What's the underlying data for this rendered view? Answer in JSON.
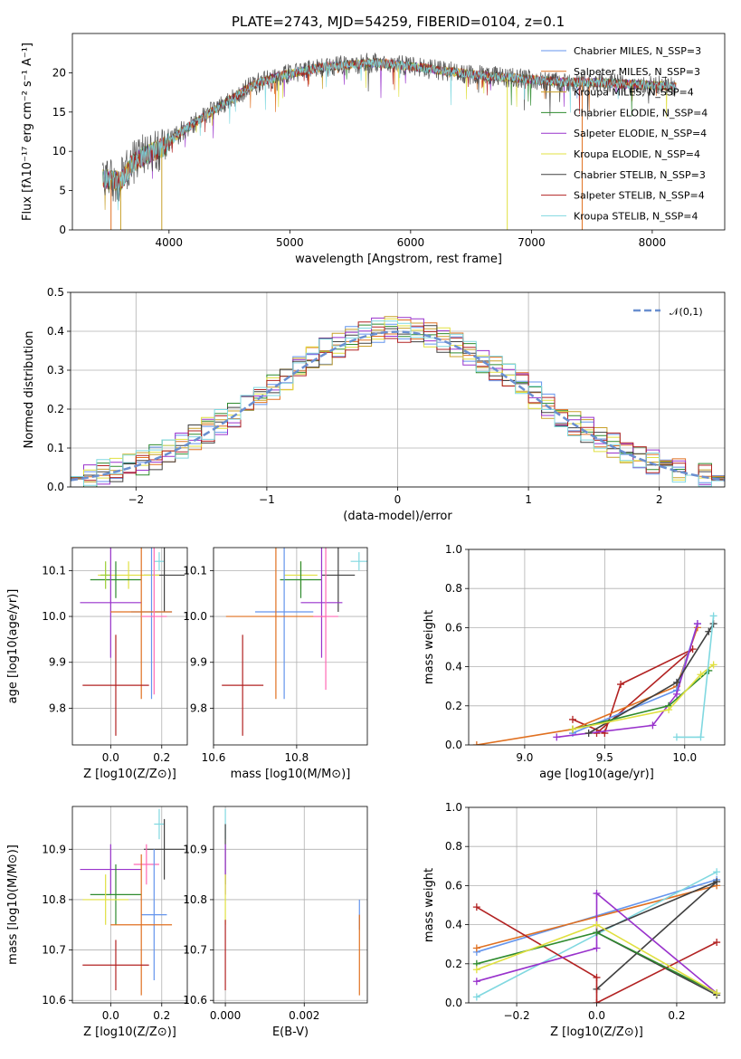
{
  "figure": {
    "title": "PLATE=2743, MJD=54259, FIBERID=0104, z=0.1"
  },
  "chart_data": [
    {
      "id": "spectrum",
      "type": "line",
      "title": "PLATE=2743, MJD=54259, FIBERID=0104, z=0.1",
      "xlabel": "wavelength [Angstrom, rest frame]",
      "ylabel": "Flux [fλ10⁻¹⁷ erg cm⁻² s⁻¹ A⁻¹]",
      "xlim": [
        3200,
        8600
      ],
      "ylim": [
        0,
        25
      ],
      "xticks": [
        4000,
        5000,
        6000,
        7000,
        8000
      ],
      "yticks": [
        0,
        5,
        10,
        15,
        20
      ],
      "grid": false,
      "legend_position": "top-right",
      "continuum": {
        "x": [
          3450,
          3600,
          3700,
          3800,
          3950,
          4100,
          4300,
          4500,
          4700,
          4900,
          5100,
          5300,
          5500,
          5700,
          5900,
          6100,
          6300,
          6500,
          6700,
          6900,
          7100,
          7300,
          7500,
          7700,
          7900,
          8100,
          8200
        ],
        "y": [
          6.5,
          6.2,
          8.5,
          9.5,
          10.5,
          12.5,
          14.5,
          16.5,
          18.5,
          19.5,
          20.2,
          20.8,
          21.0,
          21.3,
          21.0,
          20.6,
          20.2,
          19.8,
          19.5,
          19.3,
          19.0,
          18.8,
          18.8,
          18.6,
          18.5,
          18.3,
          18.2
        ]
      },
      "series": [
        {
          "name": "Chabrier MILES, N_SSP=3",
          "color": "#6495ed"
        },
        {
          "name": "Salpeter MILES, N_SSP=3",
          "color": "#e07020"
        },
        {
          "name": "Kroupa MILES, N_SSP=4",
          "color": "#c8a02a"
        },
        {
          "name": "Chabrier ELODIE, N_SSP=4",
          "color": "#2e8b2e"
        },
        {
          "name": "Salpeter ELODIE, N_SSP=4",
          "color": "#9932cc"
        },
        {
          "name": "Kroupa ELODIE, N_SSP=4",
          "color": "#e0e040"
        },
        {
          "name": "Chabrier STELIB, N_SSP=3",
          "color": "#404040"
        },
        {
          "name": "Salpeter STELIB, N_SSP=4",
          "color": "#b22222"
        },
        {
          "name": "Kroupa STELIB, N_SSP=4",
          "color": "#80d8e0"
        }
      ]
    },
    {
      "id": "residuals",
      "type": "histogram",
      "xlabel": "(data-model)/error",
      "ylabel": "Normed distribution",
      "xlim": [
        -2.5,
        2.5
      ],
      "ylim": [
        0,
        0.5
      ],
      "xticks": [
        -2,
        -1,
        0,
        1,
        2
      ],
      "yticks": [
        0.0,
        0.1,
        0.2,
        0.3,
        0.4,
        0.5
      ],
      "grid": true,
      "legend_position": "top-right",
      "bin_width": 0.1,
      "reference": {
        "name": "𝒩(0,1)",
        "color": "#6a8fd0",
        "style": "dashed"
      },
      "series_colors": [
        "#6495ed",
        "#e07020",
        "#c8a02a",
        "#2e8b2e",
        "#9932cc",
        "#e0e040",
        "#404040",
        "#b22222",
        "#80d8e0"
      ]
    },
    {
      "id": "z-age",
      "type": "scatter",
      "xlabel": "Z [log10(Z/Z⊙)]",
      "ylabel": "age  [log10(age/yr)]",
      "xlim": [
        -0.15,
        0.3
      ],
      "ylim": [
        9.72,
        10.15
      ],
      "xticks": [
        0.0,
        0.2
      ],
      "yticks": [
        9.8,
        9.9,
        10.0,
        10.1
      ],
      "grid": true,
      "points": [
        {
          "x": 0.19,
          "y": 10.12,
          "xerr": 0.02,
          "yerr": 0.02,
          "color": "#80d8e0"
        },
        {
          "x": 0.21,
          "y": 10.09,
          "xerr": 0.08,
          "yerr": 0.08,
          "color": "#404040"
        },
        {
          "x": 0.07,
          "y": 10.09,
          "xerr": 0.12,
          "yerr": 0.03,
          "color": "#e0e040"
        },
        {
          "x": 0.02,
          "y": 10.08,
          "xerr": 0.1,
          "yerr": 0.04,
          "color": "#2e8b2e"
        },
        {
          "x": -0.02,
          "y": 10.09,
          "xerr": 0.02,
          "yerr": 0.03,
          "color": "#9acd32"
        },
        {
          "x": 0.0,
          "y": 10.03,
          "xerr": 0.12,
          "yerr": 0.12,
          "color": "#9932cc"
        },
        {
          "x": 0.16,
          "y": 10.01,
          "xerr": 0.08,
          "yerr": 0.19,
          "color": "#6495ed"
        },
        {
          "x": 0.12,
          "y": 10.01,
          "xerr": 0.12,
          "yerr": 0.19,
          "color": "#e07020"
        },
        {
          "x": 0.17,
          "y": 10.0,
          "xerr": 0.05,
          "yerr": 0.17,
          "color": "#ff69b4"
        },
        {
          "x": 0.02,
          "y": 9.85,
          "xerr": 0.13,
          "yerr": 0.11,
          "color": "#b22222"
        }
      ]
    },
    {
      "id": "mass-age",
      "type": "scatter",
      "xlabel": "mass [log10(M/M⊙)]",
      "ylabel": "",
      "xlim": [
        10.6,
        10.97
      ],
      "ylim": [
        9.72,
        10.15
      ],
      "xticks": [
        10.6,
        10.8
      ],
      "yticks": [
        9.8,
        9.9,
        10.0,
        10.1
      ],
      "grid": true,
      "points": [
        {
          "x": 10.95,
          "y": 10.12,
          "xerr": 0.02,
          "yerr": 0.02,
          "color": "#80d8e0"
        },
        {
          "x": 10.9,
          "y": 10.09,
          "xerr": 0.04,
          "yerr": 0.08,
          "color": "#404040"
        },
        {
          "x": 10.81,
          "y": 10.09,
          "xerr": 0.04,
          "yerr": 0.03,
          "color": "#e0e040"
        },
        {
          "x": 10.81,
          "y": 10.08,
          "xerr": 0.05,
          "yerr": 0.04,
          "color": "#2e8b2e"
        },
        {
          "x": 10.86,
          "y": 10.03,
          "xerr": 0.05,
          "yerr": 0.12,
          "color": "#9932cc"
        },
        {
          "x": 10.77,
          "y": 10.01,
          "xerr": 0.07,
          "yerr": 0.19,
          "color": "#6495ed"
        },
        {
          "x": 10.75,
          "y": 10.0,
          "xerr": 0.12,
          "yerr": 0.18,
          "color": "#e07020"
        },
        {
          "x": 10.87,
          "y": 10.0,
          "xerr": 0.03,
          "yerr": 0.16,
          "color": "#ff69b4"
        },
        {
          "x": 10.67,
          "y": 9.85,
          "xerr": 0.05,
          "yerr": 0.11,
          "color": "#b22222"
        }
      ]
    },
    {
      "id": "age-weight",
      "type": "line",
      "xlabel": "age  [log10(age/yr)]",
      "ylabel": "mass weight",
      "xlim": [
        8.65,
        10.25
      ],
      "ylim": [
        0,
        1
      ],
      "xticks": [
        9.0,
        9.5,
        10.0
      ],
      "yticks": [
        0.0,
        0.2,
        0.4,
        0.6,
        0.8,
        1.0
      ],
      "grid": true,
      "series": [
        {
          "color": "#b22222",
          "x": [
            9.3,
            9.5,
            9.6,
            10.05,
            9.45
          ],
          "y": [
            0.13,
            0.06,
            0.31,
            0.49,
            0.06
          ]
        },
        {
          "color": "#e07020",
          "x": [
            8.7,
            9.3,
            9.95,
            10.08
          ],
          "y": [
            0.0,
            0.08,
            0.3,
            0.6
          ]
        },
        {
          "color": "#6495ed",
          "x": [
            9.3,
            9.95,
            10.08
          ],
          "y": [
            0.06,
            0.28,
            0.62
          ]
        },
        {
          "color": "#9932cc",
          "x": [
            9.2,
            9.8,
            9.95,
            10.08
          ],
          "y": [
            0.04,
            0.1,
            0.26,
            0.62
          ]
        },
        {
          "color": "#404040",
          "x": [
            9.4,
            9.95,
            10.15,
            10.18
          ],
          "y": [
            0.06,
            0.32,
            0.58,
            0.62
          ]
        },
        {
          "color": "#2e8b2e",
          "x": [
            9.3,
            9.9,
            10.15
          ],
          "y": [
            0.08,
            0.2,
            0.38
          ]
        },
        {
          "color": "#e0e040",
          "x": [
            9.3,
            9.9,
            10.1,
            10.18
          ],
          "y": [
            0.08,
            0.18,
            0.36,
            0.41
          ]
        },
        {
          "color": "#80d8e0",
          "x": [
            9.95,
            10.1,
            10.18
          ],
          "y": [
            0.04,
            0.04,
            0.66
          ]
        }
      ]
    },
    {
      "id": "z-mass",
      "type": "scatter",
      "xlabel": "Z [log10(Z/Z⊙)]",
      "ylabel": "mass [log10(M/M⊙)]",
      "xlim": [
        -0.15,
        0.3
      ],
      "ylim": [
        10.595,
        10.985
      ],
      "xticks": [
        0.0,
        0.2
      ],
      "yticks": [
        10.6,
        10.7,
        10.8,
        10.9
      ],
      "grid": true,
      "points": [
        {
          "x": 0.19,
          "y": 10.95,
          "xerr": 0.02,
          "yerr": 0.03,
          "color": "#80d8e0"
        },
        {
          "x": 0.21,
          "y": 10.9,
          "xerr": 0.08,
          "yerr": 0.06,
          "color": "#404040"
        },
        {
          "x": 0.14,
          "y": 10.87,
          "xerr": 0.05,
          "yerr": 0.04,
          "color": "#ff69b4"
        },
        {
          "x": 0.0,
          "y": 10.86,
          "xerr": 0.12,
          "yerr": 0.05,
          "color": "#9932cc"
        },
        {
          "x": 0.02,
          "y": 10.81,
          "xerr": 0.1,
          "yerr": 0.06,
          "color": "#2e8b2e"
        },
        {
          "x": -0.02,
          "y": 10.8,
          "xerr": 0.09,
          "yerr": 0.05,
          "color": "#e0e040"
        },
        {
          "x": 0.17,
          "y": 10.77,
          "xerr": 0.05,
          "yerr": 0.13,
          "color": "#6495ed"
        },
        {
          "x": 0.12,
          "y": 10.75,
          "xerr": 0.12,
          "yerr": 0.14,
          "color": "#e07020"
        },
        {
          "x": 0.02,
          "y": 10.67,
          "xerr": 0.13,
          "yerr": 0.05,
          "color": "#b22222"
        }
      ]
    },
    {
      "id": "ebv-mass",
      "type": "scatter",
      "xlabel": "E(B-V)",
      "ylabel": "",
      "xlim": [
        -0.0003,
        0.0036
      ],
      "ylim": [
        10.595,
        10.985
      ],
      "xticks": [
        0.0,
        0.002
      ],
      "yticks": [
        10.6,
        10.7,
        10.8,
        10.9
      ],
      "grid": true,
      "points": [
        {
          "x": 0.0,
          "y": 10.95,
          "xerr": 0.0,
          "yerr": 0.03,
          "color": "#80d8e0"
        },
        {
          "x": 0.0,
          "y": 10.89,
          "xerr": 0.0,
          "yerr": 0.06,
          "color": "#404040"
        },
        {
          "x": 0.0,
          "y": 10.86,
          "xerr": 0.0,
          "yerr": 0.05,
          "color": "#9932cc"
        },
        {
          "x": 0.0,
          "y": 10.8,
          "xerr": 0.0,
          "yerr": 0.05,
          "color": "#e0e040"
        },
        {
          "x": 0.0,
          "y": 10.69,
          "xerr": 0.0,
          "yerr": 0.07,
          "color": "#b22222"
        },
        {
          "x": 0.0034,
          "y": 10.77,
          "xerr": 0.0,
          "yerr": 0.03,
          "color": "#6495ed"
        },
        {
          "x": 0.0034,
          "y": 10.69,
          "xerr": 0.0,
          "yerr": 0.08,
          "color": "#e07020"
        }
      ]
    },
    {
      "id": "z-weight",
      "type": "line",
      "xlabel": "Z [log10(Z/Z⊙)]",
      "ylabel": "mass weight",
      "xlim": [
        -0.32,
        0.32
      ],
      "ylim": [
        0,
        1
      ],
      "xticks": [
        -0.2,
        0.0,
        0.2
      ],
      "yticks": [
        0.0,
        0.2,
        0.4,
        0.6,
        0.8,
        1.0
      ],
      "grid": true,
      "series": [
        {
          "color": "#6495ed",
          "x": [
            -0.3,
            0.3
          ],
          "y": [
            0.26,
            0.63
          ]
        },
        {
          "color": "#e07020",
          "x": [
            -0.3,
            0.3
          ],
          "y": [
            0.28,
            0.6
          ]
        },
        {
          "color": "#80d8e0",
          "x": [
            -0.3,
            0.3
          ],
          "y": [
            0.03,
            0.67
          ]
        },
        {
          "color": "#404040",
          "x": [
            0.0,
            0.3,
            0.0,
            0.3
          ],
          "y": [
            0.07,
            0.62,
            0.36,
            0.04
          ]
        },
        {
          "color": "#b22222",
          "x": [
            -0.3,
            0.0,
            0.0,
            0.3
          ],
          "y": [
            0.49,
            0.13,
            0.0,
            0.31
          ]
        },
        {
          "color": "#9932cc",
          "x": [
            -0.3,
            0.0,
            0.0,
            0.3
          ],
          "y": [
            0.11,
            0.28,
            0.56,
            0.05
          ]
        },
        {
          "color": "#2e8b2e",
          "x": [
            -0.3,
            0.0,
            0.3
          ],
          "y": [
            0.2,
            0.36,
            0.05
          ]
        },
        {
          "color": "#e0e040",
          "x": [
            -0.3,
            0.0,
            0.3
          ],
          "y": [
            0.17,
            0.4,
            0.05
          ]
        }
      ]
    }
  ]
}
